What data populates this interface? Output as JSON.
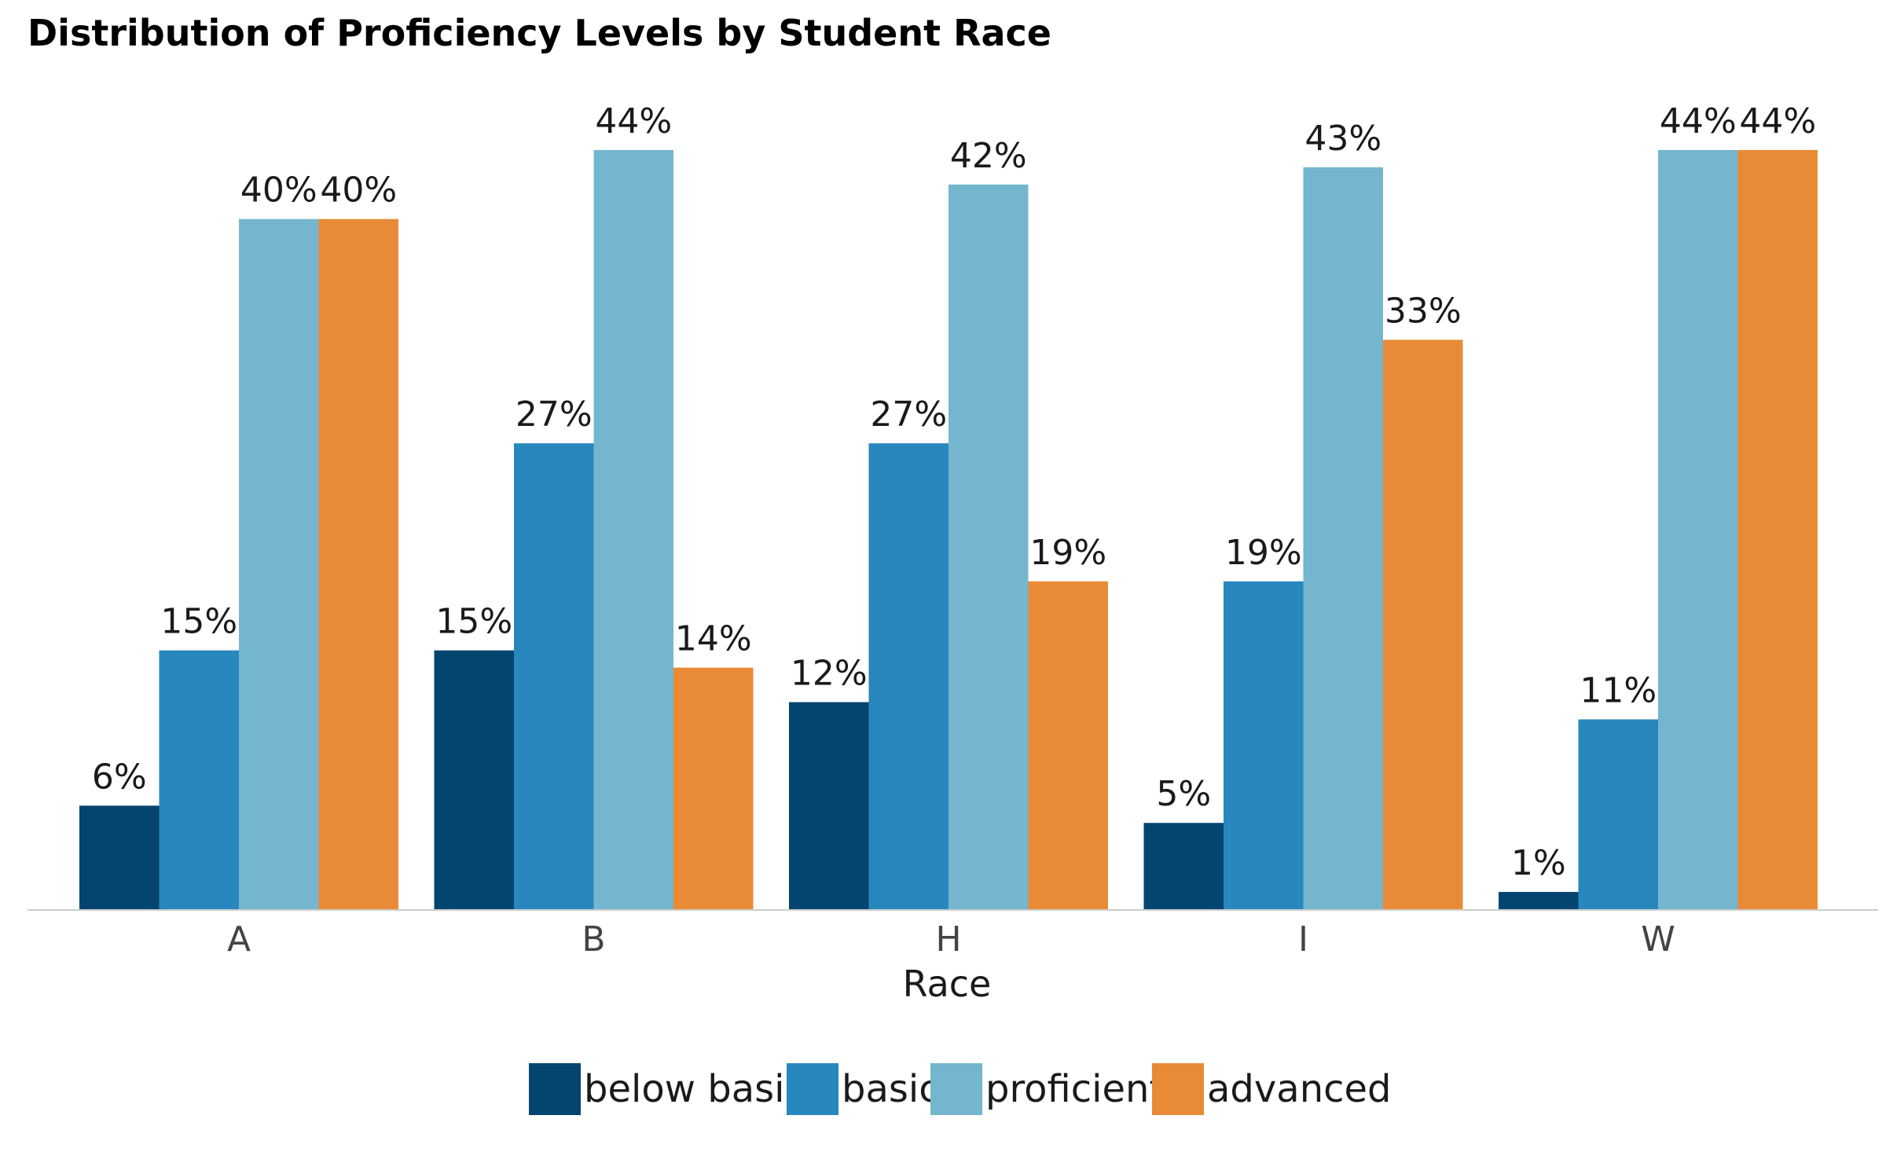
{
  "chart_data": {
    "type": "bar",
    "title": "Distribution of Proficiency Levels by Student Race",
    "xlabel": "Race",
    "ylabel": "",
    "categories": [
      "A",
      "B",
      "H",
      "I",
      "W"
    ],
    "series": [
      {
        "name": "below basic",
        "color": "#044570",
        "values": [
          6,
          15,
          12,
          5,
          1
        ]
      },
      {
        "name": "basic",
        "color": "#2887BC",
        "values": [
          15,
          27,
          27,
          19,
          11
        ]
      },
      {
        "name": "proficient",
        "color": "#74B6CE",
        "values": [
          40,
          44,
          42,
          43,
          44
        ]
      },
      {
        "name": "advanced",
        "color": "#E98A36",
        "values": [
          40,
          14,
          19,
          33,
          44
        ]
      }
    ],
    "value_suffix": "%",
    "ylim": [
      0,
      46
    ],
    "grid": false,
    "legend_position": "bottom"
  }
}
